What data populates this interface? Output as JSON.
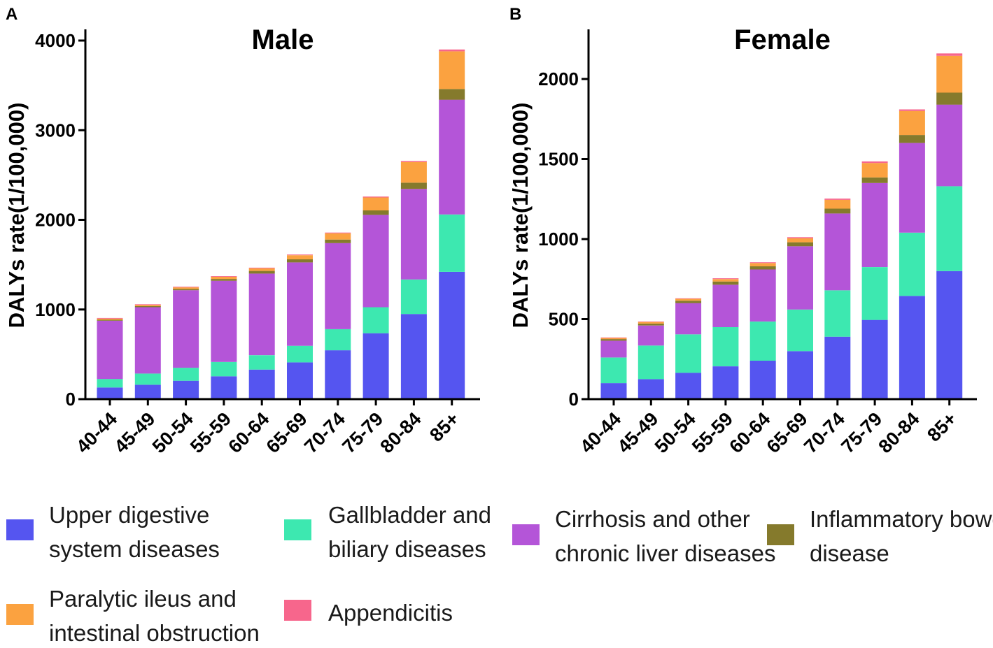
{
  "panels": {
    "a_letter": "A",
    "b_letter": "B"
  },
  "legend": [
    {
      "line1": "Upper digestive",
      "line2": "system diseases",
      "color": "#5555f0"
    },
    {
      "line1": "Gallbladder and",
      "line2": "biliary diseases",
      "color": "#3de8b0"
    },
    {
      "line1": "Cirrhosis and other",
      "line2": "chronic liver diseases",
      "color": "#b455d8"
    },
    {
      "line1": "Inflammatory bowel",
      "line2": "disease",
      "color": "#857a2c"
    },
    {
      "line1": "Paralytic ileus and",
      "line2": "intestinal obstruction",
      "color": "#fba240"
    },
    {
      "line1": "Appendicitis",
      "line2": "",
      "color": "#f7668c"
    }
  ],
  "chart_data": [
    {
      "type": "bar",
      "stacked": true,
      "title": "Male",
      "xlabel": "",
      "ylabel": "DALYs rate(1/100,000)",
      "ylim": [
        0,
        4000
      ],
      "yticks": [
        0,
        1000,
        2000,
        3000,
        4000
      ],
      "categories": [
        "40-44",
        "45-49",
        "50-54",
        "55-59",
        "60-64",
        "65-69",
        "70-74",
        "75-79",
        "80-84",
        "85+"
      ],
      "series": [
        {
          "name": "Upper digestive system diseases",
          "color": "#5555f0",
          "values": [
            130,
            160,
            205,
            255,
            330,
            410,
            545,
            735,
            950,
            1420
          ]
        },
        {
          "name": "Gallbladder and biliary diseases",
          "color": "#3de8b0",
          "values": [
            95,
            125,
            145,
            160,
            160,
            185,
            235,
            290,
            385,
            640
          ]
        },
        {
          "name": "Cirrhosis and other chronic liver diseases",
          "color": "#b455d8",
          "values": [
            650,
            740,
            865,
            905,
            910,
            930,
            960,
            1030,
            1010,
            1280
          ]
        },
        {
          "name": "Inflammatory bowel disease",
          "color": "#857a2c",
          "values": [
            10,
            12,
            15,
            20,
            30,
            35,
            40,
            50,
            70,
            120
          ]
        },
        {
          "name": "Paralytic ileus and intestinal obstruction",
          "color": "#fba240",
          "values": [
            13,
            14,
            17,
            25,
            30,
            45,
            70,
            145,
            230,
            420
          ]
        },
        {
          "name": "Appendicitis",
          "color": "#f7668c",
          "values": [
            7,
            7,
            7,
            7,
            7,
            8,
            8,
            10,
            12,
            20
          ]
        }
      ]
    },
    {
      "type": "bar",
      "stacked": true,
      "title": "Female",
      "xlabel": "",
      "ylabel": "DALYs rate(1/100,000)",
      "ylim": [
        0,
        2300
      ],
      "yticks": [
        0,
        500,
        1000,
        1500,
        2000
      ],
      "categories": [
        "40-44",
        "45-49",
        "50-54",
        "55-59",
        "60-64",
        "65-69",
        "70-74",
        "75-79",
        "80-84",
        "85+"
      ],
      "series": [
        {
          "name": "Upper digestive system diseases",
          "color": "#5555f0",
          "values": [
            100,
            125,
            165,
            205,
            240,
            300,
            390,
            495,
            645,
            800
          ]
        },
        {
          "name": "Gallbladder and biliary diseases",
          "color": "#3de8b0",
          "values": [
            160,
            210,
            240,
            245,
            245,
            260,
            290,
            330,
            395,
            530
          ]
        },
        {
          "name": "Cirrhosis and other chronic liver diseases",
          "color": "#b455d8",
          "values": [
            105,
            125,
            195,
            265,
            325,
            395,
            480,
            525,
            560,
            510
          ]
        },
        {
          "name": "Inflammatory bowel disease",
          "color": "#857a2c",
          "values": [
            10,
            12,
            15,
            20,
            20,
            25,
            30,
            35,
            50,
            75
          ]
        },
        {
          "name": "Paralytic ileus and intestinal obstruction",
          "color": "#fba240",
          "values": [
            7,
            10,
            12,
            15,
            20,
            25,
            55,
            90,
            150,
            230
          ]
        },
        {
          "name": "Appendicitis",
          "color": "#f7668c",
          "values": [
            3,
            3,
            3,
            5,
            5,
            7,
            8,
            10,
            10,
            15
          ]
        }
      ]
    }
  ]
}
